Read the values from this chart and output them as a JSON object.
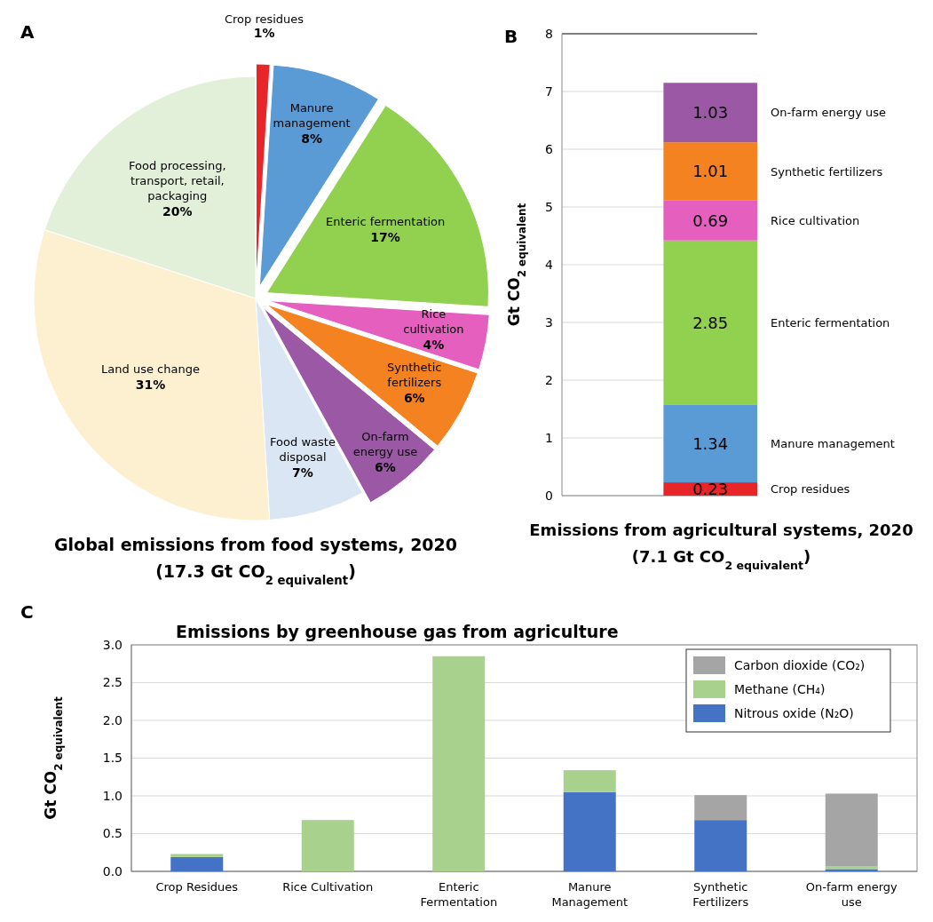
{
  "chart_data": [
    {
      "type": "pie",
      "title": "Global emissions from food systems, 2020",
      "subtitle": "(17.3 Gt CO$_{2 equivalent}$)",
      "annotations": [
        "A"
      ],
      "value_labels": [
        "1%",
        "8%",
        "17%",
        "4%",
        "6%",
        "6%",
        "7%",
        "31%",
        "20%"
      ],
      "categories": [
        "Crop residues",
        "Manure management",
        "Enteric fermentation",
        "Rice cultivation",
        "Synthetic fertilizers",
        "On-farm energy use",
        "Food waste disposal",
        "Land use change",
        "Food processing, transport, retail, packaging"
      ],
      "values": [
        1,
        8,
        17,
        4,
        6,
        6,
        7,
        31,
        20
      ],
      "colors": [
        "#e8262a",
        "#5b9bd5",
        "#92d050",
        "#e55fbf",
        "#f58220",
        "#9b59a5",
        "#dae6f4",
        "#fdf0d0",
        "#e2efd9"
      ]
    },
    {
      "type": "bar",
      "stacked": true,
      "title": "Emissions from agricultural systems, 2020",
      "subtitle": "(7.1 Gt CO$_{2 equivalent}$)",
      "ylabel": "Gt CO$_{2 equivalent}$",
      "annotations": [
        "B"
      ],
      "categories": [
        null
      ],
      "ylim": [
        0,
        8
      ],
      "yticks": [
        0,
        1,
        2,
        3,
        4,
        5,
        6,
        7,
        8
      ],
      "grid": "y",
      "legend": false,
      "data_labels": true,
      "series": [
        {
          "name": "Crop residues",
          "color": "#e8262a",
          "values": [
            0.23
          ]
        },
        {
          "name": "Manure management",
          "color": "#5b9bd5",
          "values": [
            1.34
          ]
        },
        {
          "name": "Enteric fermentation",
          "color": "#92d050",
          "values": [
            2.85
          ]
        },
        {
          "name": "Rice cultivation",
          "color": "#e55fbf",
          "values": [
            0.69
          ]
        },
        {
          "name": "Synthetic fertilizers",
          "color": "#f58220",
          "values": [
            1.01
          ]
        },
        {
          "name": "On-farm energy use",
          "color": "#9b59a5",
          "values": [
            1.03
          ]
        }
      ]
    },
    {
      "type": "bar",
      "stacked": true,
      "title": "Emissions by greenhouse gas from agriculture",
      "ylabel": "Gt CO$_{2 equivalent}$",
      "annotations": [
        "C"
      ],
      "categories": [
        "Crop Residues",
        "Rice Cultivation",
        "Enteric Fermentation",
        "Manure Management",
        "Synthetic Fertilizers",
        "On-farm energy use"
      ],
      "ylim": [
        0,
        3
      ],
      "yticks": [
        {
          "value": 0,
          "label": "0.0"
        },
        {
          "value": 0.5,
          "label": "0.5"
        },
        {
          "value": 1,
          "label": "1.0"
        },
        {
          "value": 1.5,
          "label": "1.5"
        },
        {
          "value": 2,
          "label": "2.0"
        },
        {
          "value": 2.5,
          "label": "2.5"
        },
        {
          "value": 3,
          "label": "3.0"
        }
      ],
      "grid": "y",
      "legend": "top right",
      "series": [
        {
          "name": "Nitrous oxide (N₂O)",
          "color": "#4472c4",
          "values": [
            0.19,
            0,
            0,
            1.05,
            0.68,
            0.03
          ]
        },
        {
          "name": "Methane (CH₄)",
          "color": "#a9d18e",
          "values": [
            0.04,
            0.68,
            2.85,
            0.29,
            0,
            0.04
          ]
        },
        {
          "name": "Carbon dioxide (CO₂)",
          "color": "#a5a5a5",
          "values": [
            0,
            0,
            0,
            0,
            0.33,
            0.96
          ]
        }
      ]
    }
  ]
}
